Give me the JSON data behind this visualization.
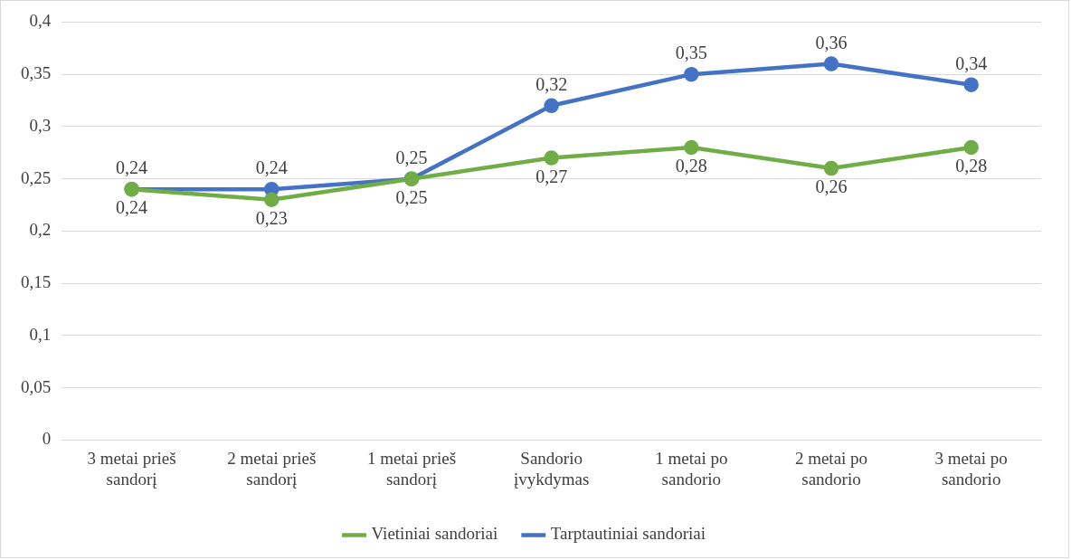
{
  "chart_data": {
    "type": "line",
    "categories": [
      "3 metai prieš sandorį",
      "2 metai prieš sandorį",
      "1 metai prieš sandorį",
      "Sandorio įvykdymas",
      "1 metai po sandorio",
      "2 metai po sandorio",
      "3 metai po sandorio"
    ],
    "series": [
      {
        "name": "Vietiniai sandoriai",
        "color": "#70ad47",
        "values": [
          0.24,
          0.23,
          0.25,
          0.27,
          0.28,
          0.26,
          0.28
        ],
        "value_labels": [
          "0,24",
          "0,23",
          "0,25",
          "0,27",
          "0,28",
          "0,26",
          "0,28"
        ]
      },
      {
        "name": "Tarptautiniai sandoriai",
        "color": "#4472c4",
        "values": [
          0.24,
          0.24,
          0.25,
          0.32,
          0.35,
          0.36,
          0.34
        ],
        "value_labels": [
          "0,24",
          "0,24",
          "0,25",
          "0,32",
          "0,35",
          "0,36",
          "0,34"
        ]
      }
    ],
    "ylim": [
      0,
      0.4
    ],
    "yticks": [
      {
        "value": 0,
        "label": "0"
      },
      {
        "value": 0.05,
        "label": "0,05"
      },
      {
        "value": 0.1,
        "label": "0,1"
      },
      {
        "value": 0.15,
        "label": "0,15"
      },
      {
        "value": 0.2,
        "label": "0,2"
      },
      {
        "value": 0.25,
        "label": "0,25"
      },
      {
        "value": 0.3,
        "label": "0,3"
      },
      {
        "value": 0.35,
        "label": "0,35"
      },
      {
        "value": 0.4,
        "label": "0,4"
      }
    ],
    "grid": "y",
    "legend": "bottom",
    "marker": "circle",
    "line_style": "solid"
  }
}
